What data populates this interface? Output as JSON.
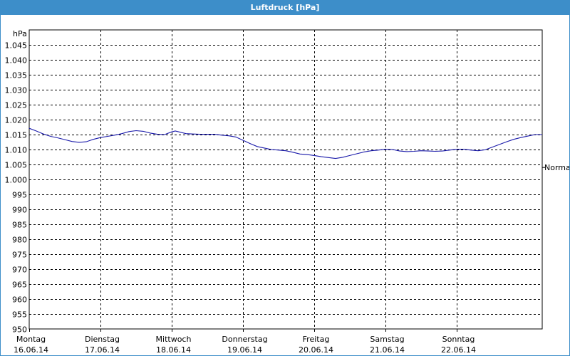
{
  "window": {
    "title": "Luftdruck [hPa]"
  },
  "colors": {
    "titlebar": "#3d8ec9",
    "series": "#1a1aaa",
    "grid": "#000000",
    "background": "#ffffff"
  },
  "chart_data": {
    "type": "line",
    "title": "Luftdruck [hPa]",
    "unit_label": "hPa",
    "ylim": [
      950,
      1050
    ],
    "yticks": [
      {
        "value": 950,
        "label": "950"
      },
      {
        "value": 955,
        "label": "955"
      },
      {
        "value": 960,
        "label": "960"
      },
      {
        "value": 965,
        "label": "965"
      },
      {
        "value": 970,
        "label": "970"
      },
      {
        "value": 975,
        "label": "975"
      },
      {
        "value": 980,
        "label": "980"
      },
      {
        "value": 985,
        "label": "985"
      },
      {
        "value": 990,
        "label": "990"
      },
      {
        "value": 995,
        "label": "995"
      },
      {
        "value": 1000,
        "label": "1.000"
      },
      {
        "value": 1005,
        "label": "1.005"
      },
      {
        "value": 1010,
        "label": "1.010"
      },
      {
        "value": 1015,
        "label": "1.015"
      },
      {
        "value": 1020,
        "label": "1.020"
      },
      {
        "value": 1025,
        "label": "1.025"
      },
      {
        "value": 1030,
        "label": "1.030"
      },
      {
        "value": 1035,
        "label": "1.035"
      },
      {
        "value": 1040,
        "label": "1.040"
      },
      {
        "value": 1045,
        "label": "1.045"
      }
    ],
    "xlim": [
      0,
      7.2
    ],
    "days": [
      {
        "x": 0,
        "weekday": "Montag",
        "date": "16.06.14"
      },
      {
        "x": 1,
        "weekday": "Dienstag",
        "date": "17.06.14"
      },
      {
        "x": 2,
        "weekday": "Mittwoch",
        "date": "18.06.14"
      },
      {
        "x": 3,
        "weekday": "Donnerstag",
        "date": "19.06.14"
      },
      {
        "x": 4,
        "weekday": "Freitag",
        "date": "20.06.14"
      },
      {
        "x": 5,
        "weekday": "Samstag",
        "date": "21.06.14"
      },
      {
        "x": 6,
        "weekday": "Sonntag",
        "date": "22.06.14"
      }
    ],
    "reference": {
      "value": 1004,
      "label": "Normal"
    },
    "grid": true,
    "series": [
      {
        "values": [
          [
            0.0,
            1017.1
          ],
          [
            0.1,
            1016.2
          ],
          [
            0.2,
            1015.2
          ],
          [
            0.3,
            1014.4
          ],
          [
            0.4,
            1013.9
          ],
          [
            0.5,
            1013.3
          ],
          [
            0.6,
            1012.7
          ],
          [
            0.7,
            1012.4
          ],
          [
            0.8,
            1012.6
          ],
          [
            0.9,
            1013.4
          ],
          [
            1.0,
            1014.0
          ],
          [
            1.1,
            1014.4
          ],
          [
            1.2,
            1014.8
          ],
          [
            1.3,
            1015.3
          ],
          [
            1.4,
            1016.0
          ],
          [
            1.5,
            1016.3
          ],
          [
            1.6,
            1016.1
          ],
          [
            1.7,
            1015.5
          ],
          [
            1.8,
            1015.1
          ],
          [
            1.9,
            1015.0
          ],
          [
            2.0,
            1015.9
          ],
          [
            2.05,
            1016.2
          ],
          [
            2.1,
            1015.9
          ],
          [
            2.2,
            1015.3
          ],
          [
            2.3,
            1015.2
          ],
          [
            2.4,
            1015.1
          ],
          [
            2.5,
            1015.1
          ],
          [
            2.6,
            1015.1
          ],
          [
            2.7,
            1014.8
          ],
          [
            2.8,
            1014.6
          ],
          [
            2.9,
            1014.2
          ],
          [
            3.0,
            1013.1
          ],
          [
            3.1,
            1012.0
          ],
          [
            3.2,
            1011.0
          ],
          [
            3.3,
            1010.5
          ],
          [
            3.4,
            1010.0
          ],
          [
            3.5,
            1009.8
          ],
          [
            3.6,
            1009.6
          ],
          [
            3.7,
            1009.1
          ],
          [
            3.8,
            1008.5
          ],
          [
            3.9,
            1008.3
          ],
          [
            4.0,
            1008.0
          ],
          [
            4.1,
            1007.6
          ],
          [
            4.2,
            1007.3
          ],
          [
            4.3,
            1007.0
          ],
          [
            4.4,
            1007.4
          ],
          [
            4.5,
            1008.0
          ],
          [
            4.6,
            1008.6
          ],
          [
            4.7,
            1009.2
          ],
          [
            4.8,
            1009.6
          ],
          [
            4.9,
            1009.8
          ],
          [
            5.0,
            1010.1
          ],
          [
            5.1,
            1010.0
          ],
          [
            5.2,
            1009.5
          ],
          [
            5.3,
            1009.3
          ],
          [
            5.4,
            1009.4
          ],
          [
            5.5,
            1009.6
          ],
          [
            5.6,
            1009.5
          ],
          [
            5.7,
            1009.4
          ],
          [
            5.8,
            1009.5
          ],
          [
            5.9,
            1009.8
          ],
          [
            6.0,
            1010.1
          ],
          [
            6.1,
            1010.1
          ],
          [
            6.2,
            1009.8
          ],
          [
            6.3,
            1009.6
          ],
          [
            6.4,
            1009.9
          ],
          [
            6.5,
            1010.8
          ],
          [
            6.6,
            1011.7
          ],
          [
            6.7,
            1012.6
          ],
          [
            6.8,
            1013.4
          ],
          [
            6.9,
            1014.0
          ],
          [
            7.0,
            1014.5
          ],
          [
            7.1,
            1015.0
          ],
          [
            7.2,
            1015.0
          ]
        ]
      }
    ]
  }
}
